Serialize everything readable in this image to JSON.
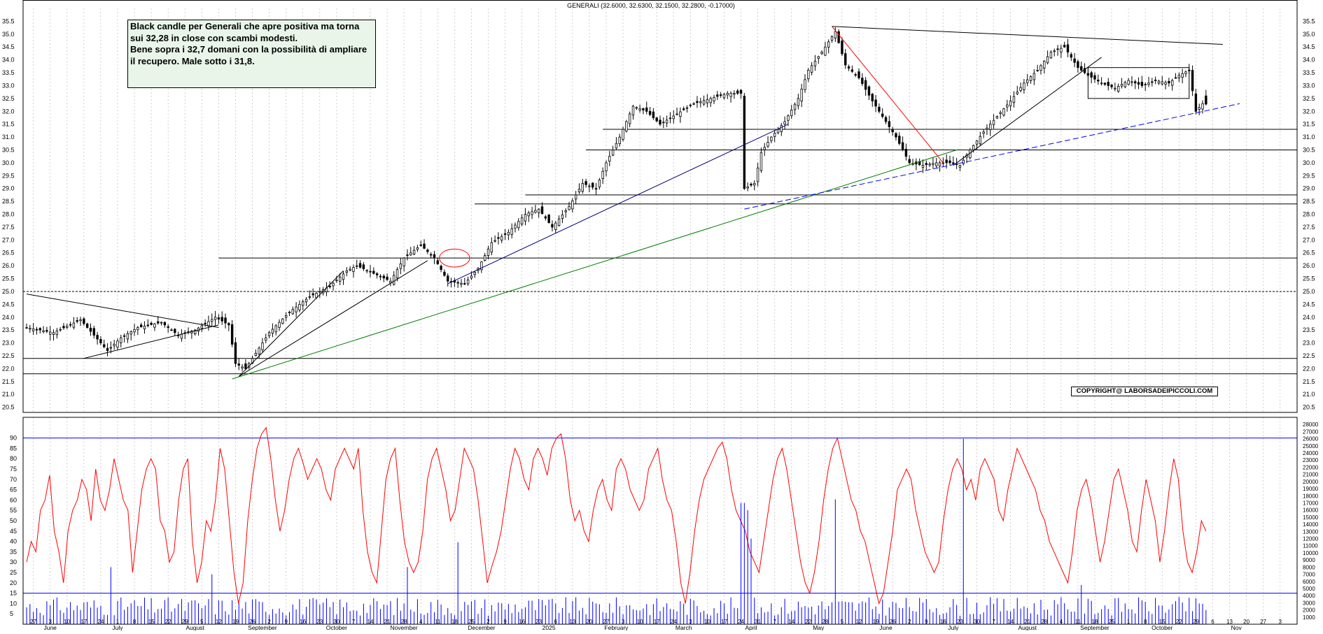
{
  "note": {
    "lines": [
      "Black candle per Generali che apre positiva ma torna",
      "sui 32,28 in close con scambi modesti.",
      "Bene sopra i 32,7 domani con la possibilità di ampliare",
      "il recupero. Male sotto i 31,8."
    ]
  },
  "copyright": "COPYRIGHT@ LABORSADEIPICCOLI.COM",
  "chart_data": [
    {
      "type": "candlestick",
      "title": "GENERALI (32.6000, 32.6300, 32.1500, 32.2800, -0.17000)",
      "ylim": [
        20.3,
        36.0
      ],
      "y_ticks": [
        "20.5",
        "21.0",
        "21.5",
        "22.0",
        "22.5",
        "23.0",
        "23.5",
        "24.0",
        "24.5",
        "25.0",
        "25.5",
        "26.0",
        "26.5",
        "27.0",
        "27.5",
        "28.0",
        "28.5",
        "29.0",
        "29.5",
        "30.0",
        "30.5",
        "31.0",
        "31.5",
        "32.0",
        "32.5",
        "33.0",
        "33.5",
        "34.0",
        "34.5",
        "35.0",
        "35.5"
      ],
      "grid": true,
      "last_candle": {
        "open": 32.6,
        "high": 32.63,
        "low": 32.15,
        "close": 32.28,
        "change": -0.17
      },
      "close_path": [
        [
          0,
          23.6
        ],
        [
          8,
          23.4
        ],
        [
          16,
          23.9
        ],
        [
          20,
          23.3
        ],
        [
          24,
          22.7
        ],
        [
          28,
          23.2
        ],
        [
          33,
          23.6
        ],
        [
          40,
          23.8
        ],
        [
          45,
          23.3
        ],
        [
          50,
          23.5
        ],
        [
          56,
          24.0
        ],
        [
          60,
          23.7
        ],
        [
          62,
          22.2
        ],
        [
          65,
          22.0
        ],
        [
          68,
          22.6
        ],
        [
          72,
          23.4
        ],
        [
          78,
          24.2
        ],
        [
          84,
          24.8
        ],
        [
          90,
          25.2
        ],
        [
          95,
          25.8
        ],
        [
          98,
          26.0
        ],
        [
          103,
          25.7
        ],
        [
          108,
          25.4
        ],
        [
          112,
          26.3
        ],
        [
          117,
          26.8
        ],
        [
          121,
          26.3
        ],
        [
          125,
          25.4
        ],
        [
          130,
          25.3
        ],
        [
          134,
          25.9
        ],
        [
          138,
          26.9
        ],
        [
          143,
          27.3
        ],
        [
          148,
          28.0
        ],
        [
          152,
          28.2
        ],
        [
          156,
          27.5
        ],
        [
          161,
          28.3
        ],
        [
          165,
          29.2
        ],
        [
          169,
          29.0
        ],
        [
          172,
          30.0
        ],
        [
          176,
          31.0
        ],
        [
          180,
          32.2
        ],
        [
          184,
          32.0
        ],
        [
          188,
          31.5
        ],
        [
          193,
          31.9
        ],
        [
          198,
          32.3
        ],
        [
          203,
          32.5
        ],
        [
          208,
          32.7
        ],
        [
          212,
          32.7
        ],
        [
          213,
          29.0
        ],
        [
          216,
          29.2
        ],
        [
          218,
          30.4
        ],
        [
          221,
          31.0
        ],
        [
          225,
          31.6
        ],
        [
          229,
          32.5
        ],
        [
          232,
          33.6
        ],
        [
          236,
          34.3
        ],
        [
          240,
          35.1
        ],
        [
          243,
          33.8
        ],
        [
          247,
          33.3
        ],
        [
          251,
          32.4
        ],
        [
          255,
          31.6
        ],
        [
          258,
          31.0
        ],
        [
          262,
          30.0
        ],
        [
          266,
          29.9
        ],
        [
          270,
          30.0
        ],
        [
          274,
          30.0
        ],
        [
          277,
          29.9
        ],
        [
          280,
          30.5
        ],
        [
          284,
          31.2
        ],
        [
          288,
          31.8
        ],
        [
          292,
          32.4
        ],
        [
          296,
          33.1
        ],
        [
          300,
          33.6
        ],
        [
          304,
          34.3
        ],
        [
          308,
          34.5
        ],
        [
          312,
          33.7
        ],
        [
          315,
          33.4
        ],
        [
          319,
          33.1
        ],
        [
          323,
          32.9
        ],
        [
          327,
          33.2
        ],
        [
          331,
          33.0
        ],
        [
          335,
          33.2
        ],
        [
          339,
          33.1
        ],
        [
          342,
          33.4
        ],
        [
          345,
          33.6
        ],
        [
          347,
          32.0
        ],
        [
          349,
          32.3
        ],
        [
          350,
          32.28
        ]
      ],
      "horizontal_levels": [
        21.8,
        22.4,
        25.0,
        26.3,
        28.4,
        28.75,
        30.5,
        31.3
      ],
      "trendlines": [
        {
          "color": "#000000",
          "from": [
            0,
            24.9
          ],
          "to": [
            57,
            23.6
          ]
        },
        {
          "color": "#000000",
          "from": [
            17,
            22.4
          ],
          "to": [
            57,
            23.7
          ]
        },
        {
          "color": "#000000",
          "from": [
            63,
            21.7
          ],
          "to": [
            94,
            25.8
          ]
        },
        {
          "color": "#000000",
          "from": [
            63,
            21.7
          ],
          "to": [
            119,
            26.2
          ]
        },
        {
          "color": "#00007f",
          "from": [
            125,
            25.3
          ],
          "to": [
            226,
            31.5
          ]
        },
        {
          "color": "#007f00",
          "from": [
            61,
            21.6
          ],
          "to": [
            276,
            30.5
          ]
        },
        {
          "color": "#ff0000",
          "from": [
            239,
            35.3
          ],
          "to": [
            272,
            30.0
          ]
        },
        {
          "color": "#000000",
          "from": [
            239,
            35.3
          ],
          "to": [
            355,
            34.6
          ]
        },
        {
          "color": "#000000",
          "from": [
            275,
            29.9
          ],
          "to": [
            319,
            34.1
          ]
        },
        {
          "color": "#0000ff",
          "dashed": true,
          "from": [
            213,
            28.2
          ],
          "to": [
            360,
            32.3
          ]
        }
      ],
      "rectangle": {
        "from": [
          315,
          32.5
        ],
        "to": [
          345,
          33.7
        ]
      },
      "ellipse": {
        "center": [
          127,
          26.3
        ],
        "rx": 4.5,
        "ry": 0.35,
        "color": "#ff0000"
      }
    },
    {
      "type": "line",
      "name": "oscillator",
      "ylim": [
        0,
        100
      ],
      "y_ticks": [
        "5",
        "10",
        "15",
        "20",
        "25",
        "30",
        "35",
        "40",
        "45",
        "50",
        "55",
        "60",
        "65",
        "70",
        "75",
        "80",
        "85",
        "90"
      ],
      "levels": [
        15,
        90
      ],
      "values": [
        30,
        40,
        35,
        55,
        60,
        72,
        45,
        35,
        20,
        45,
        55,
        60,
        70,
        65,
        50,
        75,
        60,
        55,
        65,
        80,
        70,
        60,
        55,
        25,
        45,
        65,
        75,
        80,
        75,
        50,
        45,
        30,
        35,
        60,
        75,
        80,
        40,
        20,
        30,
        50,
        45,
        60,
        85,
        75,
        50,
        25,
        10,
        20,
        50,
        70,
        85,
        92,
        95,
        80,
        60,
        45,
        55,
        70,
        80,
        85,
        78,
        70,
        75,
        80,
        75,
        65,
        60,
        75,
        80,
        85,
        80,
        75,
        85,
        55,
        35,
        25,
        20,
        45,
        70,
        80,
        85,
        60,
        40,
        30,
        25,
        30,
        45,
        70,
        80,
        85,
        75,
        65,
        50,
        55,
        70,
        85,
        80,
        75,
        60,
        40,
        20,
        28,
        35,
        45,
        60,
        75,
        85,
        80,
        70,
        65,
        80,
        85,
        80,
        72,
        85,
        90,
        92,
        80,
        60,
        50,
        55,
        45,
        40,
        55,
        65,
        70,
        60,
        55,
        75,
        80,
        75,
        65,
        60,
        55,
        60,
        75,
        80,
        85,
        70,
        60,
        55,
        40,
        20,
        10,
        25,
        45,
        60,
        70,
        75,
        80,
        85,
        88,
        80,
        65,
        55,
        50,
        45,
        35,
        30,
        25,
        40,
        55,
        70,
        80,
        85,
        75,
        60,
        45,
        30,
        20,
        15,
        25,
        40,
        60,
        75,
        85,
        90,
        80,
        70,
        60,
        55,
        45,
        40,
        30,
        20,
        10,
        15,
        30,
        45,
        65,
        70,
        75,
        70,
        55,
        45,
        35,
        30,
        25,
        30,
        50,
        65,
        75,
        80,
        75,
        65,
        70,
        60,
        75,
        80,
        75,
        70,
        55,
        50,
        65,
        75,
        85,
        80,
        75,
        70,
        65,
        55,
        50,
        40,
        35,
        30,
        25,
        20,
        35,
        55,
        65,
        70,
        60,
        45,
        30,
        40,
        55,
        70,
        75,
        65,
        55,
        40,
        35,
        55,
        70,
        60,
        50,
        30,
        45,
        65,
        80,
        70,
        45,
        30,
        25,
        35,
        50,
        45
      ],
      "color": "#ff0000"
    },
    {
      "type": "bar",
      "name": "volume",
      "ylim": [
        0,
        29000
      ],
      "y_ticks": [
        "1000",
        "2000",
        "3000",
        "4000",
        "5000",
        "6000",
        "7000",
        "8000",
        "9000",
        "10000",
        "11000",
        "12000",
        "13000",
        "14000",
        "15000",
        "16000",
        "17000",
        "18000",
        "19000",
        "20000",
        "21000",
        "22000",
        "23000",
        "24000",
        "25000",
        "26000",
        "27000",
        "28000"
      ],
      "color": "#0000ff",
      "spikes": [
        {
          "index": 25,
          "value": 8000
        },
        {
          "index": 55,
          "value": 7000
        },
        {
          "index": 113,
          "value": 8000
        },
        {
          "index": 128,
          "value": 11500
        },
        {
          "index": 212,
          "value": 17000
        },
        {
          "index": 213,
          "value": 17000
        },
        {
          "index": 214,
          "value": 16000
        },
        {
          "index": 215,
          "value": 12000
        },
        {
          "index": 240,
          "value": 17500
        },
        {
          "index": 278,
          "value": 26000
        },
        {
          "index": 313,
          "value": 5500
        }
      ]
    }
  ],
  "x_axis": {
    "day_ticks": [
      {
        "label": "27",
        "pos": 2
      },
      {
        "label": "3",
        "pos": 7
      },
      {
        "label": "10",
        "pos": 12
      },
      {
        "label": "17",
        "pos": 17
      },
      {
        "label": "24",
        "pos": 22
      },
      {
        "label": "1",
        "pos": 27
      },
      {
        "label": "8",
        "pos": 32
      },
      {
        "label": "15",
        "pos": 37
      },
      {
        "label": "22",
        "pos": 42
      },
      {
        "label": "29",
        "pos": 47
      },
      {
        "label": "5",
        "pos": 52
      },
      {
        "label": "12",
        "pos": 57
      },
      {
        "label": "19",
        "pos": 62
      },
      {
        "label": "26",
        "pos": 67
      },
      {
        "label": "2",
        "pos": 72
      },
      {
        "label": "9",
        "pos": 77
      },
      {
        "label": "16",
        "pos": 82
      },
      {
        "label": "23",
        "pos": 87
      },
      {
        "label": "30",
        "pos": 92
      },
      {
        "label": "7",
        "pos": 97
      },
      {
        "label": "14",
        "pos": 102
      },
      {
        "label": "21",
        "pos": 107
      },
      {
        "label": "28",
        "pos": 112
      },
      {
        "label": "4",
        "pos": 117
      },
      {
        "label": "11",
        "pos": 122
      },
      {
        "label": "18",
        "pos": 127
      },
      {
        "label": "25",
        "pos": 132
      },
      {
        "label": "2",
        "pos": 137
      },
      {
        "label": "9",
        "pos": 142
      },
      {
        "label": "16",
        "pos": 147
      },
      {
        "label": "23",
        "pos": 152
      },
      {
        "label": "6",
        "pos": 157
      },
      {
        "label": "13",
        "pos": 162
      },
      {
        "label": "20",
        "pos": 167
      },
      {
        "label": "27",
        "pos": 172
      },
      {
        "label": "3",
        "pos": 177
      },
      {
        "label": "10",
        "pos": 182
      },
      {
        "label": "17",
        "pos": 187
      },
      {
        "label": "24",
        "pos": 192
      },
      {
        "label": "3",
        "pos": 197
      },
      {
        "label": "10",
        "pos": 202
      },
      {
        "label": "17",
        "pos": 207
      },
      {
        "label": "24",
        "pos": 212
      },
      {
        "label": "31",
        "pos": 217
      },
      {
        "label": "7",
        "pos": 222
      },
      {
        "label": "14",
        "pos": 227
      },
      {
        "label": "22",
        "pos": 232
      },
      {
        "label": "28",
        "pos": 237
      },
      {
        "label": "5",
        "pos": 242
      },
      {
        "label": "12",
        "pos": 247
      },
      {
        "label": "19",
        "pos": 252
      },
      {
        "label": "26",
        "pos": 257
      },
      {
        "label": "2",
        "pos": 262
      },
      {
        "label": "9",
        "pos": 267
      },
      {
        "label": "16",
        "pos": 272
      },
      {
        "label": "23",
        "pos": 277
      },
      {
        "label": "30",
        "pos": 282
      },
      {
        "label": "7",
        "pos": 287
      },
      {
        "label": "14",
        "pos": 292
      },
      {
        "label": "21",
        "pos": 297
      },
      {
        "label": "28",
        "pos": 302
      },
      {
        "label": "4",
        "pos": 307
      },
      {
        "label": "11",
        "pos": 312
      },
      {
        "label": "18",
        "pos": 317
      },
      {
        "label": "25",
        "pos": 322
      },
      {
        "label": "1",
        "pos": 327
      },
      {
        "label": "8",
        "pos": 332
      },
      {
        "label": "15",
        "pos": 337
      },
      {
        "label": "22",
        "pos": 342
      },
      {
        "label": "29",
        "pos": 347
      },
      {
        "label": "6",
        "pos": 352
      },
      {
        "label": "13",
        "pos": 357
      },
      {
        "label": "20",
        "pos": 362
      },
      {
        "label": "27",
        "pos": 367
      },
      {
        "label": "3",
        "pos": 372
      }
    ],
    "month_labels": [
      {
        "label": "June",
        "pos": 7
      },
      {
        "label": "July",
        "pos": 27
      },
      {
        "label": "August",
        "pos": 50
      },
      {
        "label": "September",
        "pos": 70
      },
      {
        "label": "October",
        "pos": 92
      },
      {
        "label": "November",
        "pos": 112
      },
      {
        "label": "December",
        "pos": 135
      },
      {
        "label": "2025",
        "pos": 155
      },
      {
        "label": "February",
        "pos": 175
      },
      {
        "label": "March",
        "pos": 195
      },
      {
        "label": "April",
        "pos": 215
      },
      {
        "label": "May",
        "pos": 235
      },
      {
        "label": "June",
        "pos": 255
      },
      {
        "label": "July",
        "pos": 275
      },
      {
        "label": "August",
        "pos": 297
      },
      {
        "label": "September",
        "pos": 317
      },
      {
        "label": "October",
        "pos": 337
      },
      {
        "label": "Nov",
        "pos": 359
      }
    ]
  }
}
